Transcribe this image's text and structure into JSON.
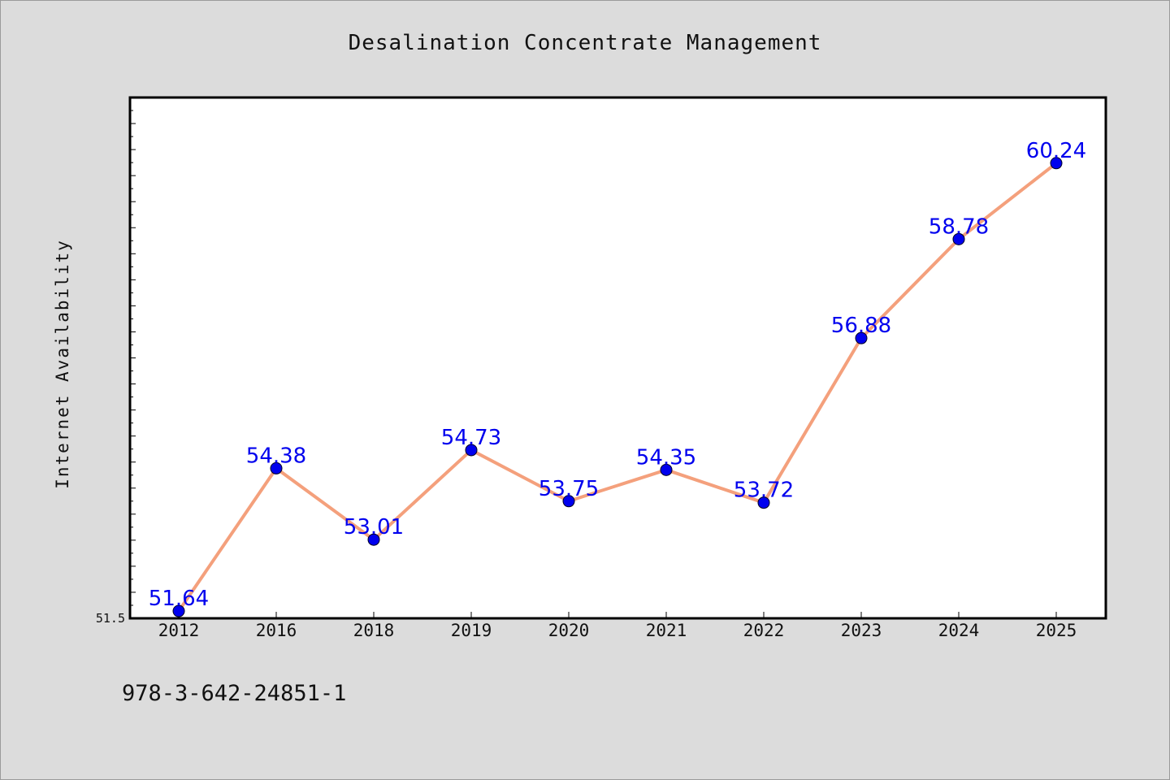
{
  "chart_data": {
    "type": "line",
    "title": "Desalination Concentrate Management",
    "xlabel": "",
    "ylabel": "Internet Availability",
    "categories": [
      "2012",
      "2016",
      "2018",
      "2019",
      "2020",
      "2021",
      "2022",
      "2023",
      "2024",
      "2025"
    ],
    "series": [
      {
        "values": [
          51.64,
          54.38,
          53.01,
          54.73,
          53.75,
          54.35,
          53.72,
          56.88,
          58.78,
          60.24
        ],
        "line_color": "#f4a07c",
        "marker_color": "#0000ee",
        "label_color": "#0000ee"
      }
    ],
    "ylim": [
      51.5,
      61.5
    ],
    "yticks_labeled": [
      "51.5"
    ],
    "grid": false,
    "legend": "none"
  },
  "footer": {
    "isbn": "978-3-642-24851-1"
  }
}
